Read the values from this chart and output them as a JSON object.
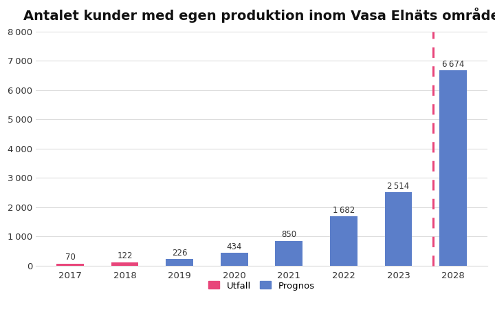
{
  "title": "Antalet kunder med egen produktion inom Vasa Elnäts område",
  "years": [
    2017,
    2018,
    2019,
    2020,
    2021,
    2022,
    2023,
    2028
  ],
  "values": [
    70,
    122,
    226,
    434,
    850,
    1682,
    2514,
    6674
  ],
  "bar_types": [
    "utfall",
    "utfall",
    "prognos",
    "prognos",
    "prognos",
    "prognos",
    "prognos",
    "prognos"
  ],
  "utfall_color": "#E8457A",
  "prognos_color": "#5B7EC9",
  "dashed_line_color": "#E8457A",
  "ylim": [
    0,
    8000
  ],
  "yticks": [
    0,
    1000,
    2000,
    3000,
    4000,
    5000,
    6000,
    7000,
    8000
  ],
  "ytick_labels": [
    "0",
    "1 000",
    "2 000",
    "3 000",
    "4 000",
    "5 000",
    "6 000",
    "7 000",
    "8 000"
  ],
  "legend_utfall": "Utfall",
  "legend_prognos": "Prognos",
  "value_labels": [
    "70",
    "122",
    "226",
    "434",
    "850",
    "1 682",
    "2 514",
    "6 674"
  ],
  "background_color": "#FFFFFF",
  "title_fontsize": 14,
  "bar_width": 0.5
}
